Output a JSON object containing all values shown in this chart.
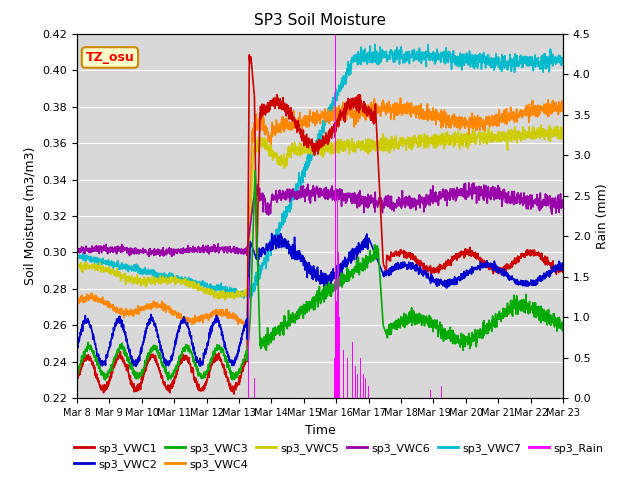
{
  "title": "SP3 Soil Moisture",
  "ylabel_left": "Soil Moisture (m3/m3)",
  "ylabel_right": "Rain (mm)",
  "xlabel": "Time",
  "ylim_left": [
    0.22,
    0.42
  ],
  "ylim_right": [
    0.0,
    4.5
  ],
  "bg_color": "#d8d8d8",
  "annotation_text": "TZ_osu",
  "annotation_bg": "#ffffcc",
  "annotation_border": "#cc8800",
  "series_colors": {
    "sp3_VWC1": "#cc0000",
    "sp3_VWC2": "#0000cc",
    "sp3_VWC3": "#00aa00",
    "sp3_VWC4": "#ff8800",
    "sp3_VWC5": "#cccc00",
    "sp3_VWC6": "#9900aa",
    "sp3_VWC7": "#00bbcc",
    "sp3_Rain": "#ff00ff"
  },
  "xtick_labels": [
    "Mar 8",
    "Mar 9",
    "Mar 10",
    "Mar 11",
    "Mar 12",
    "Mar 13",
    "Mar 14",
    "Mar 15",
    "Mar 16",
    "Mar 17",
    "Mar 18",
    "Mar 19",
    "Mar 20",
    "Mar 21",
    "Mar 22",
    "Mar 23"
  ],
  "yticks_left": [
    0.22,
    0.24,
    0.26,
    0.28,
    0.3,
    0.32,
    0.34,
    0.36,
    0.38,
    0.4,
    0.42
  ],
  "yticks_right": [
    0.0,
    0.5,
    1.0,
    1.5,
    2.0,
    2.5,
    3.0,
    3.5,
    4.0,
    4.5
  ]
}
